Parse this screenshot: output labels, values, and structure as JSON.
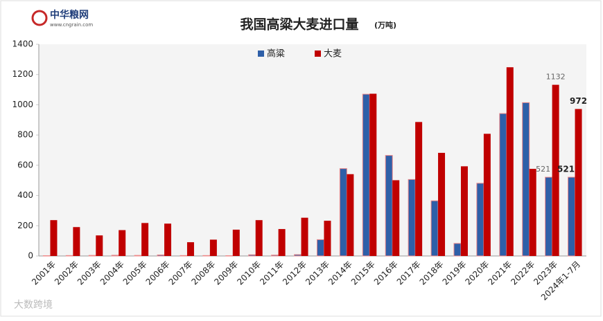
{
  "logo": {
    "name": "中华粮网",
    "url": "www.cngrain.com"
  },
  "watermark": "大数跨境",
  "chart_data": {
    "type": "bar",
    "title": "我国高粱大麦进口量",
    "subtitle": "(万吨)",
    "categories": [
      "2001年",
      "2002年",
      "2003年",
      "2004年",
      "2005年",
      "2006年",
      "2007年",
      "2008年",
      "2009年",
      "2010年",
      "2011年",
      "2012年",
      "2013年",
      "2014年",
      "2015年",
      "2016年",
      "2017年",
      "2018年",
      "2019年",
      "2020年",
      "2021年",
      "2022年",
      "2023年",
      "2024年1-7月"
    ],
    "series": [
      {
        "name": "高粱",
        "color": "#2e5fa8",
        "values": [
          2,
          3,
          4,
          5,
          4,
          7,
          3,
          3,
          2,
          8,
          6,
          9,
          108,
          578,
          1070,
          665,
          506,
          365,
          83,
          481,
          942,
          1014,
          521,
          521
        ]
      },
      {
        "name": "大麦",
        "color": "#c00000",
        "values": [
          237,
          191,
          136,
          171,
          218,
          214,
          91,
          108,
          174,
          237,
          178,
          253,
          233,
          541,
          1073,
          501,
          886,
          682,
          593,
          808,
          1248,
          576,
          1132,
          972
        ]
      }
    ],
    "ylim": [
      0,
      1400
    ],
    "yticks": [
      0,
      200,
      400,
      600,
      800,
      1000,
      1200,
      1400
    ],
    "grid": false,
    "legend": "top"
  }
}
